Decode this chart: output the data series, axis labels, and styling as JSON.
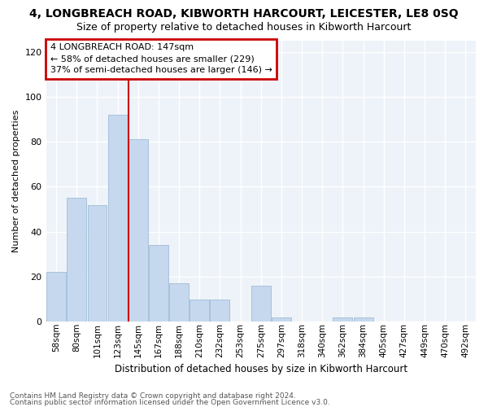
{
  "title": "4, LONGBREACH ROAD, KIBWORTH HARCOURT, LEICESTER, LE8 0SQ",
  "subtitle": "Size of property relative to detached houses in Kibworth Harcourt",
  "xlabel": "Distribution of detached houses by size in Kibworth Harcourt",
  "ylabel": "Number of detached properties",
  "bar_color": "#c5d8ed",
  "bar_edge_color": "#a0bcd8",
  "background_color": "#eef3f9",
  "fig_background": "#ffffff",
  "grid_color": "#ffffff",
  "categories": [
    "58sqm",
    "80sqm",
    "101sqm",
    "123sqm",
    "145sqm",
    "167sqm",
    "188sqm",
    "210sqm",
    "232sqm",
    "253sqm",
    "275sqm",
    "297sqm",
    "318sqm",
    "340sqm",
    "362sqm",
    "384sqm",
    "405sqm",
    "427sqm",
    "449sqm",
    "470sqm",
    "492sqm"
  ],
  "values": [
    22,
    55,
    52,
    92,
    81,
    34,
    17,
    10,
    10,
    0,
    16,
    2,
    0,
    0,
    2,
    2,
    0,
    0,
    0,
    0,
    0
  ],
  "ylim": [
    0,
    125
  ],
  "yticks": [
    0,
    20,
    40,
    60,
    80,
    100,
    120
  ],
  "property_label": "4 LONGBREACH ROAD: 147sqm",
  "annotation_line1": "← 58% of detached houses are smaller (229)",
  "annotation_line2": "37% of semi-detached houses are larger (146) →",
  "annotation_box_color": "#ffffff",
  "annotation_box_edge": "#cc0000",
  "red_line_color": "#cc0000",
  "footer1": "Contains HM Land Registry data © Crown copyright and database right 2024.",
  "footer2": "Contains public sector information licensed under the Open Government Licence v3.0.",
  "title_fontsize": 10,
  "subtitle_fontsize": 9
}
